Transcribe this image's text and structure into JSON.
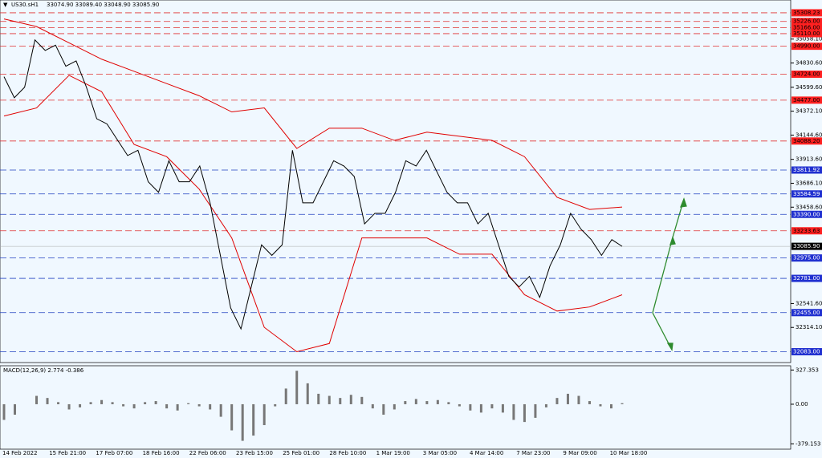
{
  "header": {
    "symbol": "US30.sH1",
    "ohlc": "33074.90 33089.40 33048.90 33085.90"
  },
  "price_axis": {
    "range": [
      31980,
      35430
    ],
    "ticks": [
      {
        "value": 35058.1,
        "label": "35058.10"
      },
      {
        "value": 34830.6,
        "label": "34830.60"
      },
      {
        "value": 34599.6,
        "label": "34599.60"
      },
      {
        "value": 34372.1,
        "label": "34372.10"
      },
      {
        "value": 34144.6,
        "label": "34144.60"
      },
      {
        "value": 33913.6,
        "label": "33913.60"
      },
      {
        "value": 33686.1,
        "label": "33686.10"
      },
      {
        "value": 33458.6,
        "label": "33458.60"
      },
      {
        "value": 32541.6,
        "label": "32541.60"
      },
      {
        "value": 32314.1,
        "label": "32314.10"
      }
    ]
  },
  "current_price": {
    "value": 33085.9,
    "label": "33085.90"
  },
  "levels": [
    {
      "value": 35308.23,
      "color": "red"
    },
    {
      "value": 35226,
      "label": "35226.00",
      "color": "red"
    },
    {
      "value": 35166,
      "label": "35166.00",
      "color": "red"
    },
    {
      "value": 35110,
      "label": "35110.00",
      "color": "red"
    },
    {
      "value": 34990,
      "label": "34990.00",
      "color": "red"
    },
    {
      "value": 34724,
      "label": "34724.00",
      "color": "red"
    },
    {
      "value": 34477,
      "label": "34477.00",
      "color": "red"
    },
    {
      "value": 34088.2,
      "label": "34088.20",
      "color": "red"
    },
    {
      "value": 33811.92,
      "color": "blue"
    },
    {
      "value": 33584.59,
      "color": "blue"
    },
    {
      "value": 33390,
      "label": "33390.00",
      "color": "blue"
    },
    {
      "value": 33233.63,
      "color": "red"
    },
    {
      "value": 32975,
      "label": "32975.00",
      "color": "blue"
    },
    {
      "value": 32781,
      "label": "32781.00",
      "color": "blue"
    },
    {
      "value": 32455,
      "label": "32455.00",
      "color": "blue"
    },
    {
      "value": 32083,
      "label": "32083.00",
      "color": "blue"
    }
  ],
  "price": [
    34700,
    34500,
    34600,
    35050,
    34950,
    35000,
    34800,
    34850,
    34600,
    34300,
    34250,
    34100,
    33950,
    34000,
    33700,
    33600,
    33900,
    33700,
    33700,
    33850,
    33500,
    33000,
    32500,
    32300,
    32700,
    33100,
    33000,
    33100,
    34000,
    33500,
    33500,
    33700,
    33900,
    33850,
    33750,
    33300,
    33400,
    33400,
    33600,
    33900,
    33850,
    34000,
    33800,
    33600,
    33500,
    33500,
    33300,
    33400,
    33100,
    32800,
    32700,
    32800,
    32600,
    32900,
    33100,
    33400,
    33250,
    33150,
    33000,
    33150,
    33085.9
  ],
  "band_upper": [
    35250,
    35177,
    35022,
    34867,
    34751,
    34635,
    34519,
    34365,
    34403,
    34017,
    34210,
    34210,
    34094,
    34172,
    34133,
    34094,
    33939,
    33553,
    33437,
    33460
  ],
  "band_lower": [
    34326,
    34403,
    34713,
    34558,
    34055,
    33939,
    33630,
    33166,
    32315,
    32083,
    32161,
    33166,
    33166,
    33166,
    33011,
    33011,
    32625,
    32470,
    32509,
    32625
  ],
  "macd": {
    "label": "MACD(12,26,9) 2.774 -0.386",
    "range": [
      -430,
      368
    ],
    "ticks": [
      327.353,
      {
        "value": 0,
        "label": "0.00"
      },
      -379.153
    ],
    "histogram": [
      -150,
      -100,
      0,
      80,
      60,
      20,
      -50,
      -30,
      20,
      40,
      20,
      -20,
      -40,
      20,
      30,
      -40,
      -60,
      10,
      -20,
      -50,
      -120,
      -250,
      -350,
      -300,
      -200,
      -20,
      150,
      320,
      200,
      100,
      80,
      60,
      90,
      70,
      -40,
      -100,
      -50,
      30,
      50,
      30,
      40,
      20,
      -20,
      -60,
      -80,
      -40,
      -80,
      -150,
      -170,
      -130,
      -30,
      60,
      100,
      80,
      30,
      -20,
      -40,
      10
    ]
  },
  "time_labels": [
    "14 Feb 2022",
    "15 Feb 21:00",
    "17 Feb 07:00",
    "18 Feb 16:00",
    "22 Feb 06:00",
    "23 Feb 15:00",
    "25 Feb 01:00",
    "28 Feb 10:00",
    "1 Mar 19:00",
    "3 Mar 05:00",
    "4 Mar 14:00",
    "7 Mar 23:00",
    "9 Mar 09:00",
    "10 Mar 18:00"
  ]
}
